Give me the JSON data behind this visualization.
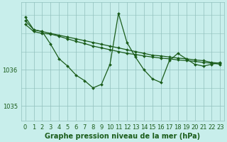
{
  "xlabel": "Graphe pression niveau de la mer (hPa)",
  "background_color": "#c8eeeb",
  "plot_bg_color": "#c8eeeb",
  "grid_color": "#90c0bc",
  "line_color": "#1a5c1a",
  "hours": [
    0,
    1,
    2,
    3,
    4,
    5,
    6,
    7,
    8,
    9,
    10,
    11,
    12,
    13,
    14,
    15,
    16,
    17,
    18,
    19,
    20,
    21,
    22,
    23
  ],
  "series_flat1": [
    1037.35,
    1037.1,
    1037.05,
    1037.0,
    1036.95,
    1036.9,
    1036.85,
    1036.8,
    1036.75,
    1036.7,
    1036.65,
    1036.6,
    1036.55,
    1036.5,
    1036.45,
    1036.4,
    1036.38,
    1036.35,
    1036.32,
    1036.3,
    1036.27,
    1036.25,
    1036.2,
    1036.18
  ],
  "series_flat2": [
    1037.25,
    1037.05,
    1037.0,
    1036.98,
    1036.92,
    1036.85,
    1036.78,
    1036.72,
    1036.65,
    1036.6,
    1036.55,
    1036.5,
    1036.45,
    1036.42,
    1036.38,
    1036.35,
    1036.32,
    1036.3,
    1036.27,
    1036.25,
    1036.23,
    1036.2,
    1036.18,
    1036.15
  ],
  "series_var": [
    1037.45,
    1037.1,
    1037.05,
    1036.7,
    1036.3,
    1036.1,
    1035.85,
    1035.7,
    1035.5,
    1035.6,
    1036.15,
    1037.55,
    1036.75,
    1036.35,
    1036.0,
    1035.75,
    1035.65,
    1036.25,
    1036.45,
    1036.3,
    1036.15,
    1036.1,
    1036.15,
    1036.2
  ],
  "ylim_min": 1034.6,
  "ylim_max": 1037.85,
  "yticks": [
    1035,
    1036
  ],
  "font_color": "#1a5c1a",
  "marker": "D",
  "markersize": 2.0,
  "linewidth": 0.9,
  "tick_label_fontsize": 6.0,
  "xlabel_fontsize": 7.0
}
